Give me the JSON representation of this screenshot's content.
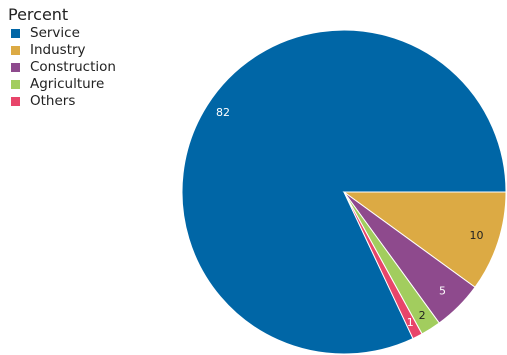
{
  "chart_data": {
    "type": "pie",
    "legend_title": "Percent",
    "legend_position": "top-left",
    "categories": [
      "Service",
      "Industry",
      "Construction",
      "Agriculture",
      "Others"
    ],
    "values": [
      82,
      10,
      5,
      2,
      1
    ],
    "colors": [
      "#0066a6",
      "#dcaa44",
      "#8e4a8d",
      "#a2cd5e",
      "#e8456a"
    ],
    "label_colors": [
      "#ffffff",
      "#222222",
      "#ffffff",
      "#222222",
      "#ffffff"
    ],
    "data_labels": [
      "82",
      "10",
      "5",
      "2",
      "1"
    ]
  }
}
